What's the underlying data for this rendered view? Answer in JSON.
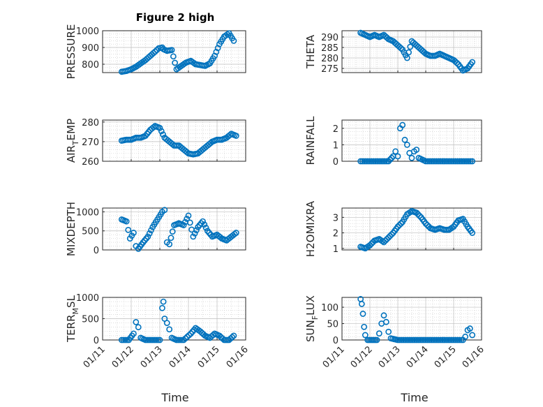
{
  "figure": {
    "title": "Figure 2 high",
    "xlabel": "Time",
    "x_ticks": [
      "01/11",
      "01/12",
      "01/13",
      "01/14",
      "01/15",
      "01/16"
    ],
    "marker_color": "#0072BD"
  },
  "chart_data": [
    {
      "type": "scatter",
      "ylabel": "PRESSURE",
      "ylim": [
        750,
        1000
      ],
      "y_ticks": [
        800,
        900,
        1000
      ],
      "grid": true,
      "x": [
        "01/11 16:00",
        "01/11 20:00",
        "01/12 00:00",
        "01/12 04:00",
        "01/12 08:00",
        "01/12 12:00",
        "01/12 16:00",
        "01/12 20:00",
        "01/12 23:00",
        "01/13 02:00",
        "01/13 03:00",
        "01/13 06:00",
        "01/13 10:00",
        "01/13 14:00",
        "01/13 18:00",
        "01/13 22:00",
        "01/14 02:00",
        "01/14 06:00",
        "01/14 10:00",
        "01/14 14:00",
        "01/14 18:00",
        "01/14 22:00",
        "01/15 02:00",
        "01/15 06:00",
        "01/15 10:00",
        "01/15 14:00"
      ],
      "y": [
        755,
        760,
        770,
        785,
        805,
        825,
        850,
        875,
        895,
        900,
        890,
        880,
        885,
        770,
        790,
        810,
        820,
        800,
        795,
        790,
        805,
        850,
        920,
        965,
        985,
        940
      ]
    },
    {
      "type": "scatter",
      "ylabel": "THETA",
      "ylim": [
        273,
        293
      ],
      "y_ticks": [
        275,
        280,
        285,
        290
      ],
      "grid": true,
      "x": [
        "01/11 16:00",
        "01/11 20:00",
        "01/12 00:00",
        "01/12 04:00",
        "01/12 08:00",
        "01/12 12:00",
        "01/12 16:00",
        "01/12 20:00",
        "01/13 00:00",
        "01/13 04:00",
        "01/13 08:00",
        "01/13 12:00",
        "01/13 16:00",
        "01/13 20:00",
        "01/14 00:00",
        "01/14 04:00",
        "01/14 08:00",
        "01/14 12:00",
        "01/14 16:00",
        "01/14 20:00",
        "01/15 00:00",
        "01/15 04:00",
        "01/15 08:00",
        "01/15 12:00",
        "01/15 16:00"
      ],
      "y": [
        292,
        291,
        290,
        291,
        290,
        291,
        289,
        288,
        286,
        284,
        280,
        288,
        286,
        284,
        282,
        281,
        281,
        282,
        281,
        280,
        279,
        277,
        274,
        275,
        278
      ]
    },
    {
      "type": "scatter",
      "ylabel": "AIR_TEMP",
      "ylim": [
        260,
        281
      ],
      "y_ticks": [
        260,
        270,
        280
      ],
      "grid": true,
      "x": [
        "01/11 16:00",
        "01/11 20:00",
        "01/12 00:00",
        "01/12 04:00",
        "01/12 08:00",
        "01/12 12:00",
        "01/12 16:00",
        "01/12 20:00",
        "01/13 00:00",
        "01/13 04:00",
        "01/13 08:00",
        "01/13 12:00",
        "01/13 16:00",
        "01/13 20:00",
        "01/14 00:00",
        "01/14 04:00",
        "01/14 08:00",
        "01/14 12:00",
        "01/14 16:00",
        "01/14 20:00",
        "01/15 00:00",
        "01/15 04:00",
        "01/15 08:00",
        "01/15 12:00",
        "01/15 16:00"
      ],
      "y": [
        270.5,
        271,
        271,
        272,
        272,
        273,
        276,
        278,
        277,
        272,
        270,
        268,
        268,
        266,
        264,
        263.5,
        264,
        266,
        268,
        270,
        271,
        271,
        272,
        274,
        273
      ]
    },
    {
      "type": "scatter",
      "ylabel": "RAINFALL",
      "ylim": [
        0,
        2.5
      ],
      "y_ticks": [
        0,
        1,
        2
      ],
      "grid": true,
      "x": [
        "01/11 16:00",
        "01/12 00:00",
        "01/12 08:00",
        "01/12 16:00",
        "01/12 20:00",
        "01/12 22:00",
        "01/13 00:00",
        "01/13 02:00",
        "01/13 04:00",
        "01/13 06:00",
        "01/13 08:00",
        "01/13 10:00",
        "01/13 12:00",
        "01/13 14:00",
        "01/13 16:00",
        "01/13 18:00",
        "01/14 00:00",
        "01/14 08:00",
        "01/14 16:00",
        "01/15 00:00",
        "01/15 08:00",
        "01/15 16:00"
      ],
      "y": [
        0,
        0,
        0,
        0,
        0.3,
        0.6,
        0.3,
        2.0,
        2.2,
        1.3,
        1.0,
        0.5,
        0.2,
        0.6,
        0.7,
        0.2,
        0,
        0,
        0,
        0,
        0,
        0
      ]
    },
    {
      "type": "scatter",
      "ylabel": "MIXDEPTH",
      "ylim": [
        0,
        1100
      ],
      "y_ticks": [
        0,
        500,
        1000
      ],
      "grid": true,
      "x": [
        "01/11 16:00",
        "01/11 20:00",
        "01/11 23:00",
        "01/12 02:00",
        "01/12 04:00",
        "01/12 06:00",
        "01/12 10:00",
        "01/12 14:00",
        "01/12 18:00",
        "01/12 22:00",
        "01/13 02:00",
        "01/13 04:00",
        "01/13 06:00",
        "01/13 08:00",
        "01/13 12:00",
        "01/13 16:00",
        "01/13 20:00",
        "01/14 00:00",
        "01/14 04:00",
        "01/14 08:00",
        "01/14 12:00",
        "01/14 16:00",
        "01/14 20:00",
        "01/15 00:00",
        "01/15 04:00",
        "01/15 08:00",
        "01/15 12:00",
        "01/15 16:00"
      ],
      "y": [
        800,
        750,
        300,
        450,
        100,
        30,
        200,
        350,
        600,
        800,
        1000,
        1050,
        200,
        150,
        650,
        700,
        650,
        900,
        350,
        600,
        750,
        500,
        350,
        400,
        300,
        250,
        350,
        450
      ]
    },
    {
      "type": "scatter",
      "ylabel": "H2OMIXRA",
      "ylim": [
        0.9,
        3.6
      ],
      "y_ticks": [
        1,
        2,
        3
      ],
      "grid": true,
      "x": [
        "01/11 16:00",
        "01/11 20:00",
        "01/12 00:00",
        "01/12 04:00",
        "01/12 08:00",
        "01/12 12:00",
        "01/12 16:00",
        "01/12 20:00",
        "01/13 00:00",
        "01/13 04:00",
        "01/13 08:00",
        "01/13 12:00",
        "01/13 16:00",
        "01/13 20:00",
        "01/14 00:00",
        "01/14 04:00",
        "01/14 08:00",
        "01/14 12:00",
        "01/14 16:00",
        "01/14 20:00",
        "01/15 00:00",
        "01/15 04:00",
        "01/15 08:00",
        "01/15 12:00",
        "01/15 16:00"
      ],
      "y": [
        1.1,
        1.0,
        1.2,
        1.5,
        1.6,
        1.4,
        1.7,
        2.0,
        2.4,
        2.7,
        3.2,
        3.4,
        3.3,
        3.0,
        2.6,
        2.3,
        2.2,
        2.3,
        2.2,
        2.2,
        2.4,
        2.8,
        2.9,
        2.4,
        2.0
      ]
    },
    {
      "type": "scatter",
      "ylabel": "TERR_MSL",
      "ylim": [
        0,
        1000
      ],
      "y_ticks": [
        0,
        500,
        1000
      ],
      "grid": true,
      "x": [
        "01/11 16:00",
        "01/11 22:00",
        "01/12 02:00",
        "01/12 04:00",
        "01/12 06:00",
        "01/12 08:00",
        "01/12 12:00",
        "01/12 18:00",
        "01/13 00:00",
        "01/13 02:00",
        "01/13 03:00",
        "01/13 04:00",
        "01/13 06:00",
        "01/13 08:00",
        "01/13 10:00",
        "01/13 14:00",
        "01/13 20:00",
        "01/14 02:00",
        "01/14 06:00",
        "01/14 10:00",
        "01/14 14:00",
        "01/14 18:00",
        "01/14 22:00",
        "01/15 02:00",
        "01/15 06:00",
        "01/15 10:00",
        "01/15 14:00"
      ],
      "y": [
        0,
        0,
        150,
        420,
        300,
        50,
        0,
        0,
        0,
        750,
        900,
        500,
        400,
        250,
        50,
        0,
        0,
        150,
        280,
        200,
        100,
        50,
        150,
        100,
        0,
        0,
        100
      ]
    },
    {
      "type": "scatter",
      "ylabel": "SUN_FLUX",
      "ylim": [
        0,
        130
      ],
      "y_ticks": [
        0,
        50,
        100
      ],
      "grid": true,
      "x": [
        "01/11 16:00",
        "01/11 17:00",
        "01/11 18:00",
        "01/11 19:00",
        "01/11 20:00",
        "01/11 22:00",
        "01/12 02:00",
        "01/12 06:00",
        "01/12 08:00",
        "01/12 10:00",
        "01/12 12:00",
        "01/12 14:00",
        "01/12 16:00",
        "01/12 18:00",
        "01/13 00:00",
        "01/13 08:00",
        "01/13 16:00",
        "01/14 00:00",
        "01/14 08:00",
        "01/14 16:00",
        "01/15 00:00",
        "01/15 08:00",
        "01/15 10:00",
        "01/15 12:00",
        "01/15 14:00",
        "01/15 16:00"
      ],
      "y": [
        125,
        110,
        80,
        40,
        15,
        0,
        0,
        0,
        20,
        50,
        75,
        55,
        25,
        5,
        0,
        0,
        0,
        0,
        0,
        0,
        0,
        0,
        10,
        30,
        35,
        15
      ]
    }
  ]
}
